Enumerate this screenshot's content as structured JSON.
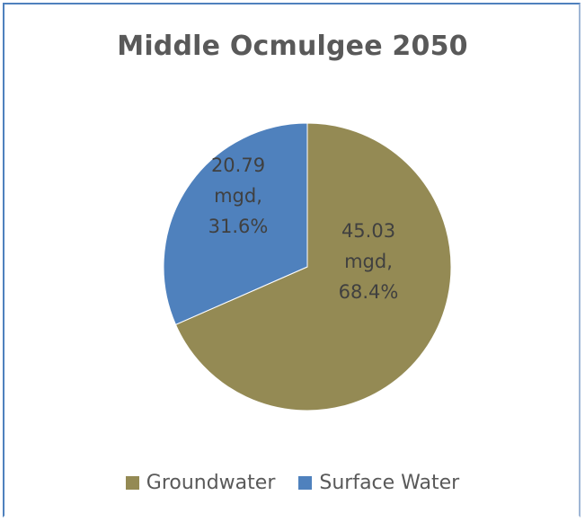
{
  "chart_data": {
    "type": "pie",
    "title": "Middle Ocmulgee 2050",
    "unit": "mgd",
    "slices": [
      {
        "name": "Groundwater",
        "value": 45.03,
        "percent": "68.4%",
        "label_value": "45.03",
        "label_unit": "mgd,",
        "color": "#948a54"
      },
      {
        "name": "Surface Water",
        "value": 20.79,
        "percent": "31.6%",
        "label_value": "20.79",
        "label_unit": "mgd,",
        "color": "#4f81bd"
      }
    ],
    "legend_position": "bottom",
    "label_color": "#404040"
  }
}
